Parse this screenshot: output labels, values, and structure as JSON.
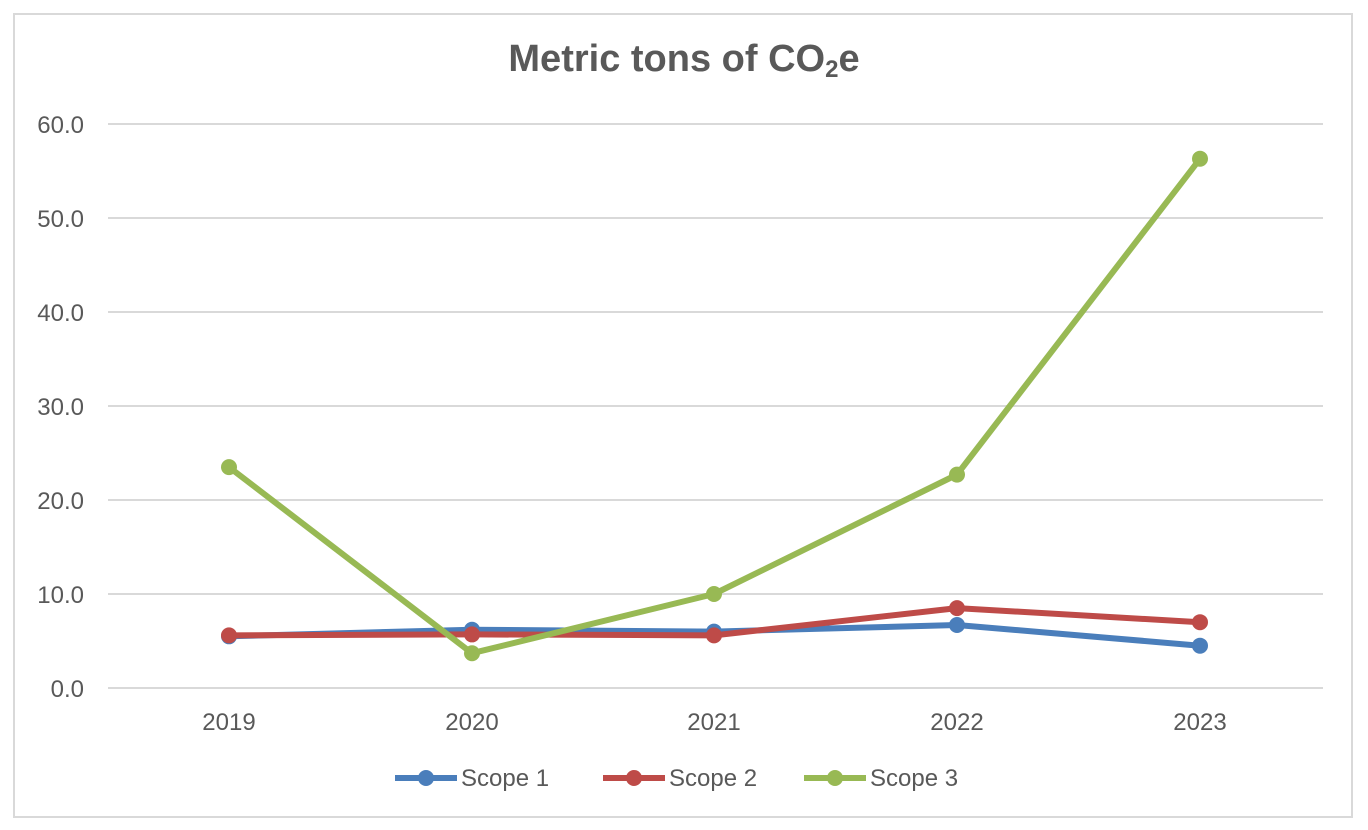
{
  "chart_data": {
    "type": "line",
    "title_main": "Metric tons of CO",
    "title_sub": "2",
    "title_end": "e",
    "categories": [
      "2019",
      "2020",
      "2021",
      "2022",
      "2023"
    ],
    "ylim": [
      0,
      60
    ],
    "yticks": [
      "0.0",
      "10.0",
      "20.0",
      "30.0",
      "40.0",
      "50.0",
      "60.0"
    ],
    "grid": true,
    "legend_position": "bottom",
    "series": [
      {
        "name": "Scope 1",
        "color": "#4a7ebb",
        "values": [
          5.5,
          6.2,
          6.0,
          6.7,
          4.5
        ]
      },
      {
        "name": "Scope 2",
        "color": "#be4b48",
        "values": [
          5.6,
          5.7,
          5.6,
          8.5,
          7.0
        ]
      },
      {
        "name": "Scope 3",
        "color": "#98b954",
        "values": [
          23.5,
          3.7,
          10.0,
          22.7,
          56.3
        ]
      }
    ]
  }
}
